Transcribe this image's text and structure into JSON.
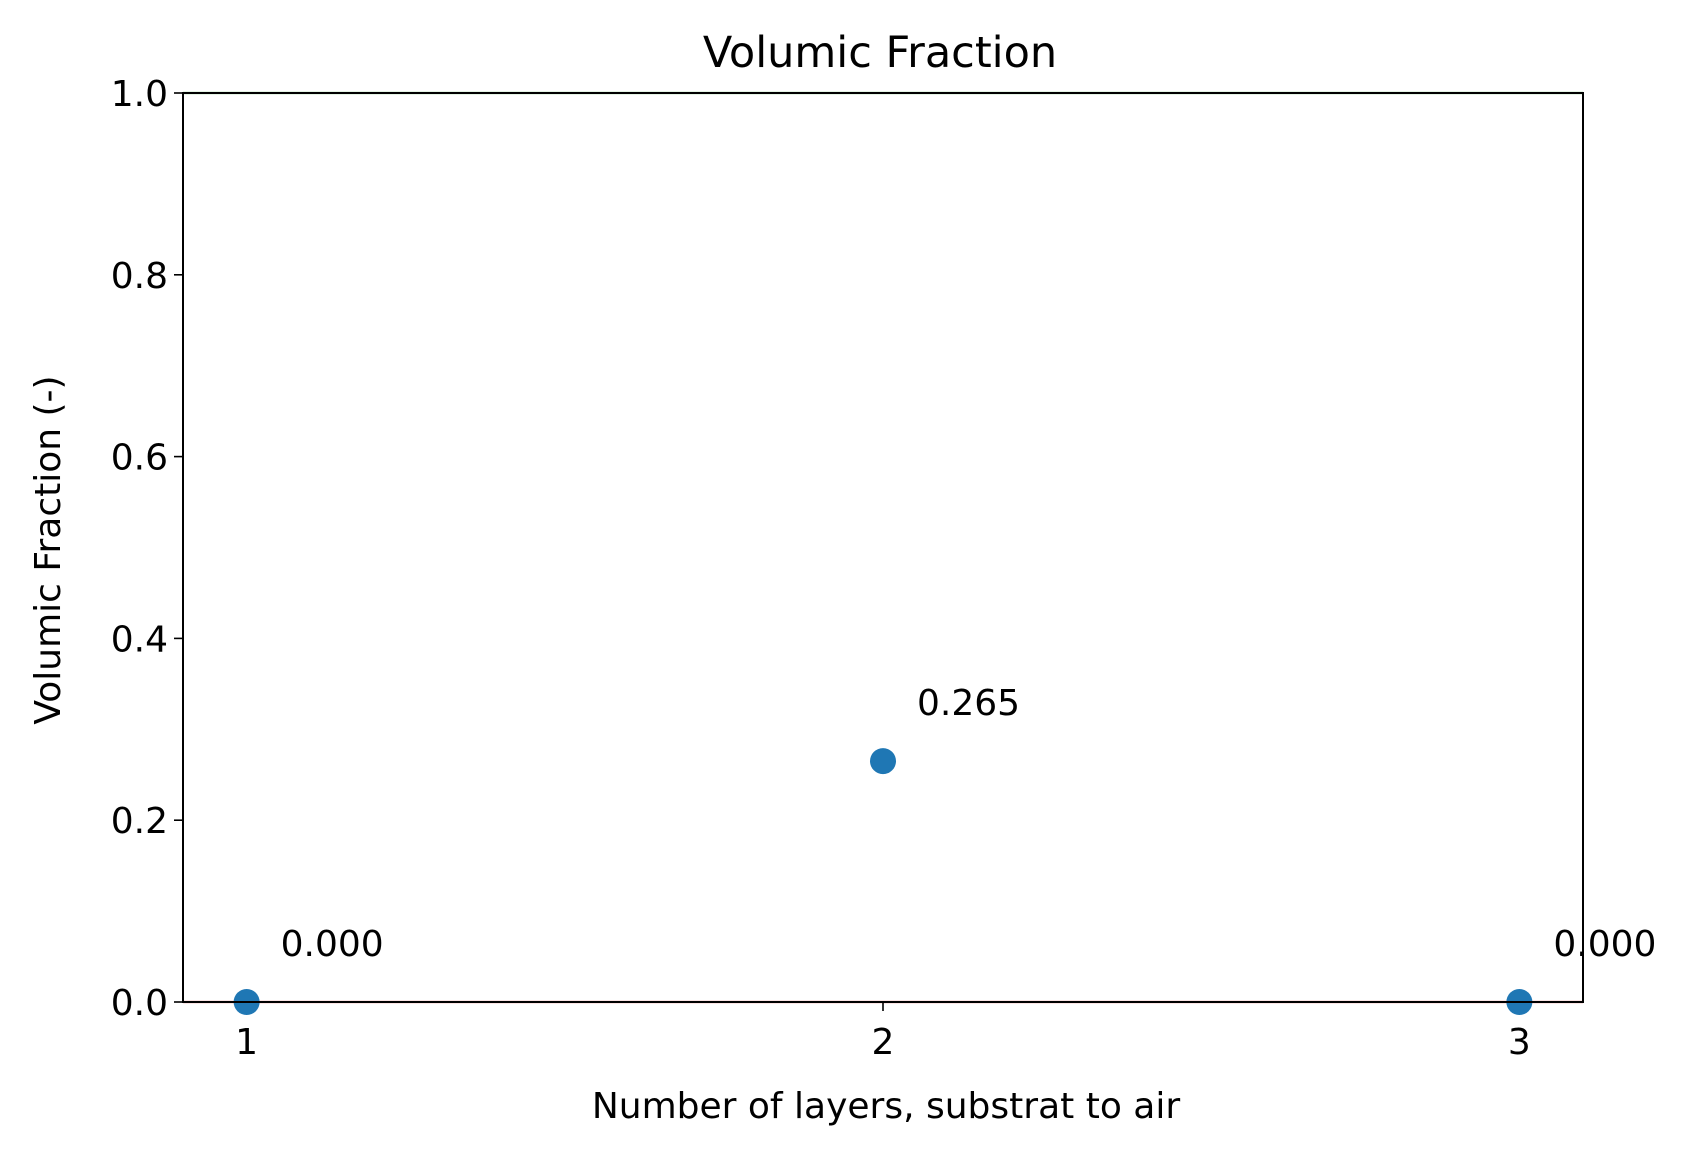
{
  "chart_data": {
    "type": "scatter",
    "title": "Volumic Fraction",
    "xlabel": "Number of layers, substrat to air",
    "ylabel": "Volumic Fraction (-)",
    "x": [
      1,
      2,
      3
    ],
    "y": [
      0.0,
      0.265,
      0.0
    ],
    "data_labels": [
      "0.000",
      "0.265",
      "0.000"
    ],
    "xticks": [
      "1",
      "2",
      "3"
    ],
    "yticks": [
      "0.0",
      "0.2",
      "0.4",
      "0.6",
      "0.8",
      "1.0"
    ],
    "xlim": [
      0.9,
      3.1
    ],
    "ylim": [
      0.0,
      1.0
    ],
    "reference_lines": [
      {
        "y": 0.0,
        "color": "#d62728"
      },
      {
        "y": 1.0,
        "color": "#2ca02c"
      }
    ],
    "marker_color": "#1f77b4",
    "grid": false,
    "legend": false
  }
}
